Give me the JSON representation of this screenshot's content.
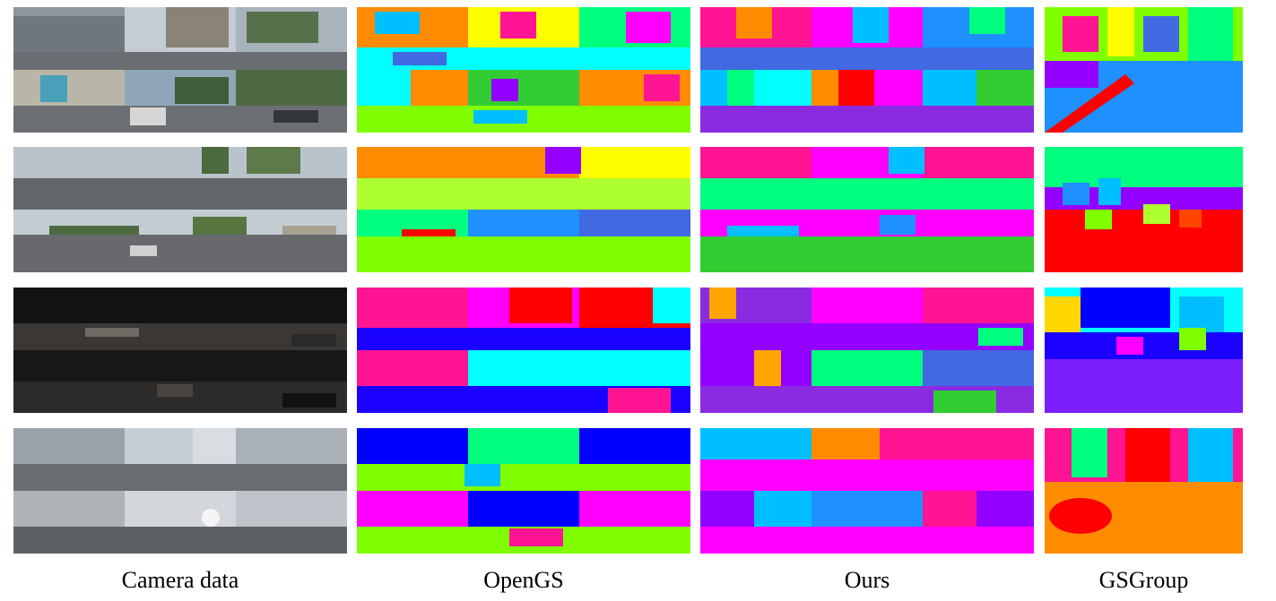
{
  "columns": [
    {
      "key": "camera",
      "label": "Camera data"
    },
    {
      "key": "opengs",
      "label": "OpenGS"
    },
    {
      "key": "ours",
      "label": "Ours"
    },
    {
      "key": "gsgroup",
      "label": "GSGroup"
    }
  ],
  "rows": [
    {
      "key": "scene-1-daytime-street"
    },
    {
      "key": "scene-2-wide-road"
    },
    {
      "key": "scene-3-night-street"
    },
    {
      "key": "scene-4-city-crossing"
    }
  ],
  "palette": {
    "camera_sky": "#b9c3cc",
    "camera_road": "#5e6166",
    "camera_dark": "#1f1d1c",
    "seg": [
      "#ff1493",
      "#00bfff",
      "#7fff00",
      "#9400ff",
      "#ff8c00",
      "#00ff7f",
      "#ff0000",
      "#4169e1",
      "#ffff00",
      "#00ffff",
      "#ff00ff",
      "#228b22",
      "#8a2be2",
      "#ffd700",
      "#1e90ff",
      "#32cd32"
    ]
  }
}
